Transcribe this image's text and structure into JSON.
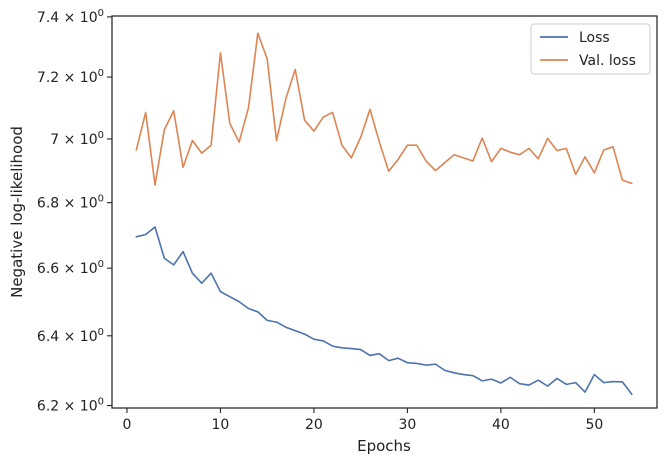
{
  "chart_data": {
    "type": "line",
    "xlabel": "Epochs",
    "ylabel": "Negative log-likelihood",
    "xlim": [
      -1.6,
      56.7
    ],
    "ylim": [
      6.193,
      7.403
    ],
    "yscale": "log",
    "x_ticks": [
      0,
      10,
      20,
      30,
      40,
      50
    ],
    "y_ticks": [
      {
        "value": 6.2,
        "mantissa": "6.2",
        "base": "10",
        "exp": "0"
      },
      {
        "value": 6.4,
        "mantissa": "6.4",
        "base": "10",
        "exp": "0"
      },
      {
        "value": 6.6,
        "mantissa": "6.6",
        "base": "10",
        "exp": "0"
      },
      {
        "value": 6.8,
        "mantissa": "6.8",
        "base": "10",
        "exp": "0"
      },
      {
        "value": 7.0,
        "mantissa": "7",
        "base": "10",
        "exp": "0"
      },
      {
        "value": 7.2,
        "mantissa": "7.2",
        "base": "10",
        "exp": "0"
      },
      {
        "value": 7.4,
        "mantissa": "7.4",
        "base": "10",
        "exp": "0"
      }
    ],
    "grid": false,
    "legend_position": "top-right",
    "x": [
      1,
      2,
      3,
      4,
      5,
      6,
      7,
      8,
      9,
      10,
      11,
      12,
      13,
      14,
      15,
      16,
      17,
      18,
      19,
      20,
      21,
      22,
      23,
      24,
      25,
      26,
      27,
      28,
      29,
      30,
      31,
      32,
      33,
      34,
      35,
      36,
      37,
      38,
      39,
      40,
      41,
      42,
      43,
      44,
      45,
      46,
      47,
      48,
      49,
      50,
      51,
      52,
      53,
      54
    ],
    "series": [
      {
        "name": "Loss",
        "color": "#4c72b0",
        "values": [
          6.695,
          6.702,
          6.725,
          6.63,
          6.61,
          6.65,
          6.585,
          6.555,
          6.585,
          6.53,
          6.515,
          6.5,
          6.48,
          6.47,
          6.445,
          6.44,
          6.425,
          6.415,
          6.405,
          6.39,
          6.385,
          6.37,
          6.365,
          6.363,
          6.36,
          6.343,
          6.348,
          6.328,
          6.335,
          6.322,
          6.32,
          6.315,
          6.318,
          6.3,
          6.293,
          6.288,
          6.285,
          6.27,
          6.275,
          6.264,
          6.28,
          6.262,
          6.258,
          6.272,
          6.255,
          6.277,
          6.26,
          6.265,
          6.238,
          6.288,
          6.265,
          6.268,
          6.267,
          6.232
        ]
      },
      {
        "name": "Val. loss",
        "color": "#dd8452",
        "values": [
          6.965,
          7.085,
          6.855,
          7.03,
          7.09,
          6.91,
          6.995,
          6.955,
          6.98,
          7.28,
          7.05,
          6.99,
          7.1,
          7.345,
          7.26,
          6.995,
          7.13,
          7.225,
          7.06,
          7.025,
          7.07,
          7.085,
          6.98,
          6.94,
          7.005,
          7.095,
          6.99,
          6.898,
          6.935,
          6.98,
          6.98,
          6.93,
          6.9,
          6.925,
          6.95,
          6.94,
          6.93,
          7.003,
          6.928,
          6.97,
          6.958,
          6.95,
          6.97,
          6.937,
          7.002,
          6.963,
          6.97,
          6.888,
          6.943,
          6.893,
          6.965,
          6.975,
          6.87,
          6.86
        ]
      }
    ]
  }
}
